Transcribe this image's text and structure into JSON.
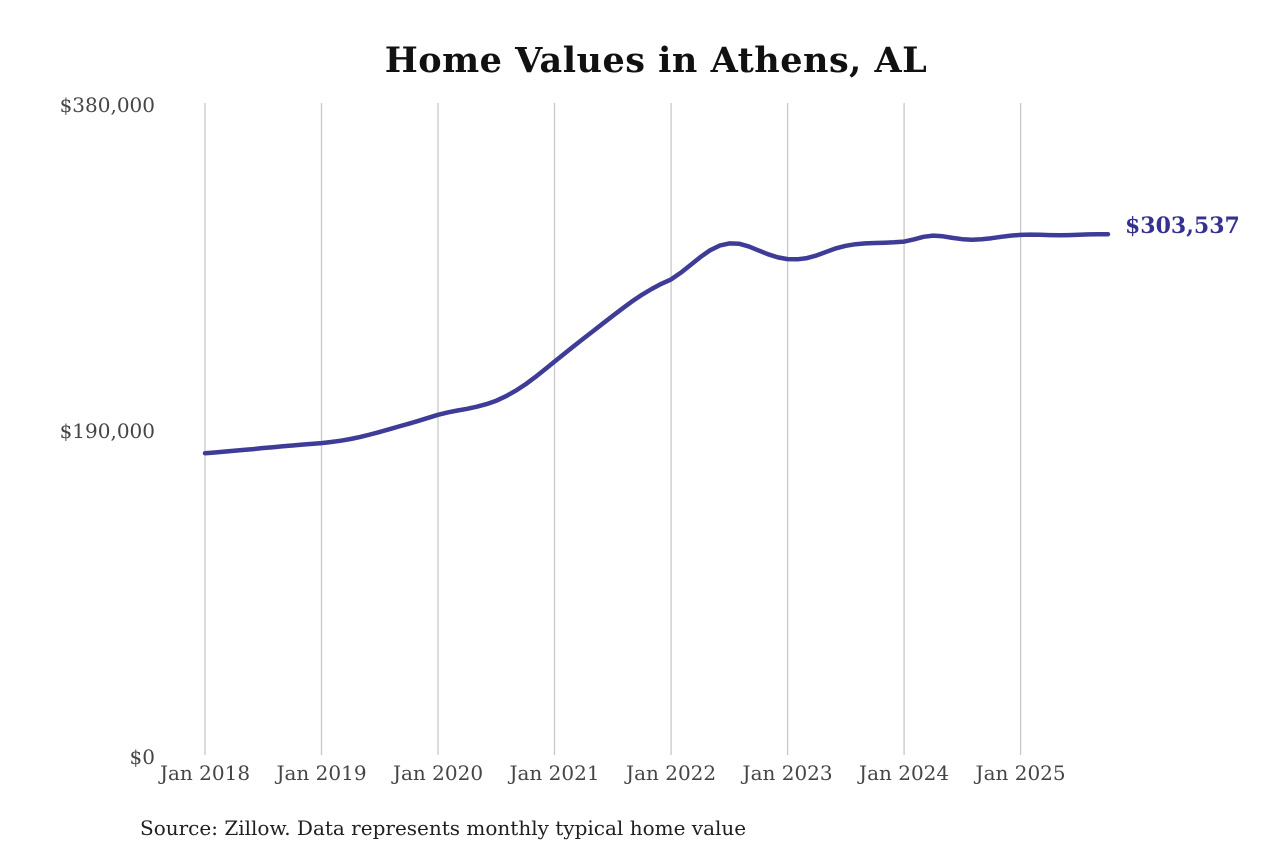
{
  "title": "Home Values in Athens, AL",
  "source_note": "Source: Zillow. Data represents monthly typical home value",
  "end_label": "$303,537",
  "colors": {
    "line": "#3e3c96",
    "end_label": "#34318f",
    "grid": "#c8c8c8",
    "axis_text": "#454545",
    "title_text": "#111111",
    "source_text": "#1f1f1f",
    "background": "#ffffff"
  },
  "chart_data": {
    "type": "line",
    "title": "Home Values in Athens, AL",
    "xlabel": "",
    "ylabel": "",
    "legend": "none",
    "grid": "vertical-only",
    "frequency": "monthly",
    "x_start": "Jan 2018",
    "x_end": "Oct 2025",
    "ylim": [
      0,
      380000
    ],
    "y_ticks": [
      0,
      190000,
      380000
    ],
    "y_tick_labels": [
      "$0",
      "$190,000",
      "$380,000"
    ],
    "x_tick_labels": [
      "Jan 2018",
      "Jan 2019",
      "Jan 2020",
      "Jan 2021",
      "Jan 2022",
      "Jan 2023",
      "Jan 2024",
      "Jan 2025"
    ],
    "x_tick_month_indices": [
      0,
      12,
      24,
      36,
      48,
      60,
      72,
      84
    ],
    "final_value": 303537,
    "series": [
      {
        "name": "Monthly typical home value",
        "values": [
          175900,
          176300,
          176800,
          177300,
          177800,
          178300,
          178900,
          179400,
          179900,
          180400,
          180900,
          181300,
          181800,
          182400,
          183200,
          184200,
          185400,
          186800,
          188300,
          189900,
          191500,
          193100,
          194800,
          196500,
          198300,
          199700,
          200800,
          201800,
          203000,
          204500,
          206500,
          209100,
          212300,
          216000,
          220200,
          224700,
          229300,
          233900,
          238400,
          242800,
          247200,
          251600,
          256000,
          260300,
          264400,
          268200,
          271600,
          274600,
          277200,
          281100,
          285600,
          290100,
          294100,
          296900,
          298200,
          298000,
          296400,
          294100,
          291800,
          290000,
          289000,
          288900,
          289600,
          291200,
          293300,
          295300,
          296800,
          297700,
          298200,
          298400,
          298600,
          298800,
          299200,
          300500,
          302000,
          302700,
          302300,
          301400,
          300600,
          300300,
          300600,
          301200,
          302000,
          302700,
          303100,
          303300,
          303200,
          303000,
          302900,
          303000,
          303200,
          303400,
          303500,
          303537
        ]
      }
    ]
  }
}
